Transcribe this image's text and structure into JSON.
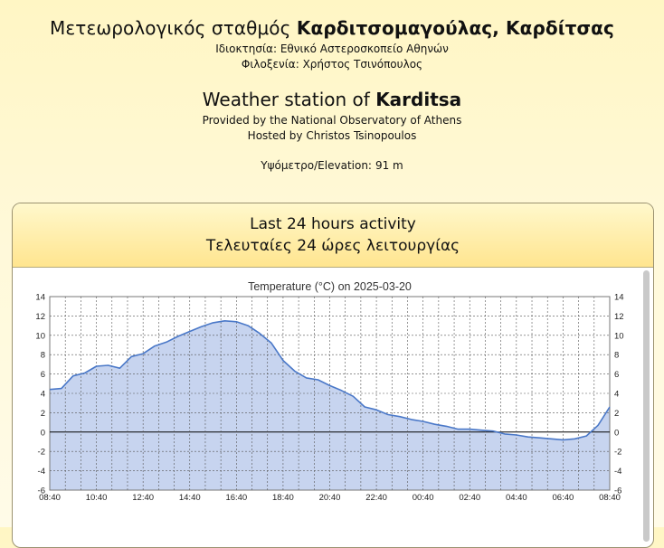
{
  "header": {
    "title_gr_prefix": "Μετεωρολογικός σταθμός ",
    "title_gr_bold": "Καρδιτσομαγούλας, Καρδίτσας",
    "owner_gr": "Ιδιοκτησία: Εθνικό Αστεροσκοπείο Αθηνών",
    "host_gr": "Φιλοξενία: Χρήστος Τσινόπουλος",
    "title_en_prefix": "Weather station of ",
    "title_en_bold": "Karditsa",
    "provided_en": "Provided by the National Observatory of Athens",
    "hosted_en": "Hosted by Christos Tsinopoulos",
    "elevation_label": "Υψόμετρο/Elevation:",
    "elevation_value": "91 m"
  },
  "panel": {
    "title_en": "Last 24 hours activity",
    "title_gr": "Τελευταίες 24 ώρες λειτουργίας"
  },
  "colors": {
    "fill": "#c7d4ef",
    "line": "#4a78c8",
    "grid": "#555555",
    "zero": "#000000"
  },
  "chart_data": {
    "type": "area",
    "title": "Temperature (°C) on 2025-03-20",
    "xlabel": "",
    "ylabel": "",
    "ylim": [
      -6,
      14
    ],
    "yticks": [
      14,
      12,
      10,
      8,
      6,
      4,
      2,
      0,
      -2,
      -4,
      -6
    ],
    "xlim": [
      "08:40",
      "08:40"
    ],
    "x_tick_labels": [
      "08:40",
      "10:40",
      "12:40",
      "14:40",
      "16:40",
      "18:40",
      "20:40",
      "22:40",
      "00:40",
      "02:40",
      "04:40",
      "06:40",
      "08:40"
    ],
    "grid": true,
    "series": [
      {
        "hours": [
          0,
          0.5,
          1,
          1.5,
          2,
          2.5,
          3,
          3.5,
          4,
          4.5,
          5,
          5.5,
          6,
          6.5,
          7,
          7.5,
          8,
          8.5,
          9,
          9.5,
          10,
          10.5,
          11,
          11.5,
          12,
          12.5,
          13,
          13.5,
          14,
          14.5,
          15,
          15.5,
          16,
          16.5,
          17,
          17.5,
          18,
          18.5,
          19,
          19.5,
          20,
          20.5,
          21,
          21.5,
          22,
          22.5,
          23,
          23.5,
          24
        ],
        "values": [
          4.4,
          4.5,
          5.8,
          6.1,
          6.8,
          6.9,
          6.6,
          7.8,
          8.1,
          8.9,
          9.3,
          9.9,
          10.4,
          10.9,
          11.3,
          11.5,
          11.4,
          11.0,
          10.2,
          9.2,
          7.4,
          6.3,
          5.6,
          5.4,
          4.8,
          4.3,
          3.7,
          2.6,
          2.3,
          1.8,
          1.6,
          1.3,
          1.1,
          0.8,
          0.6,
          0.3,
          0.3,
          0.2,
          0.1,
          -0.2,
          -0.3,
          -0.5,
          -0.6,
          -0.7,
          -0.8,
          -0.7,
          -0.4,
          0.7,
          2.6
        ]
      }
    ]
  }
}
